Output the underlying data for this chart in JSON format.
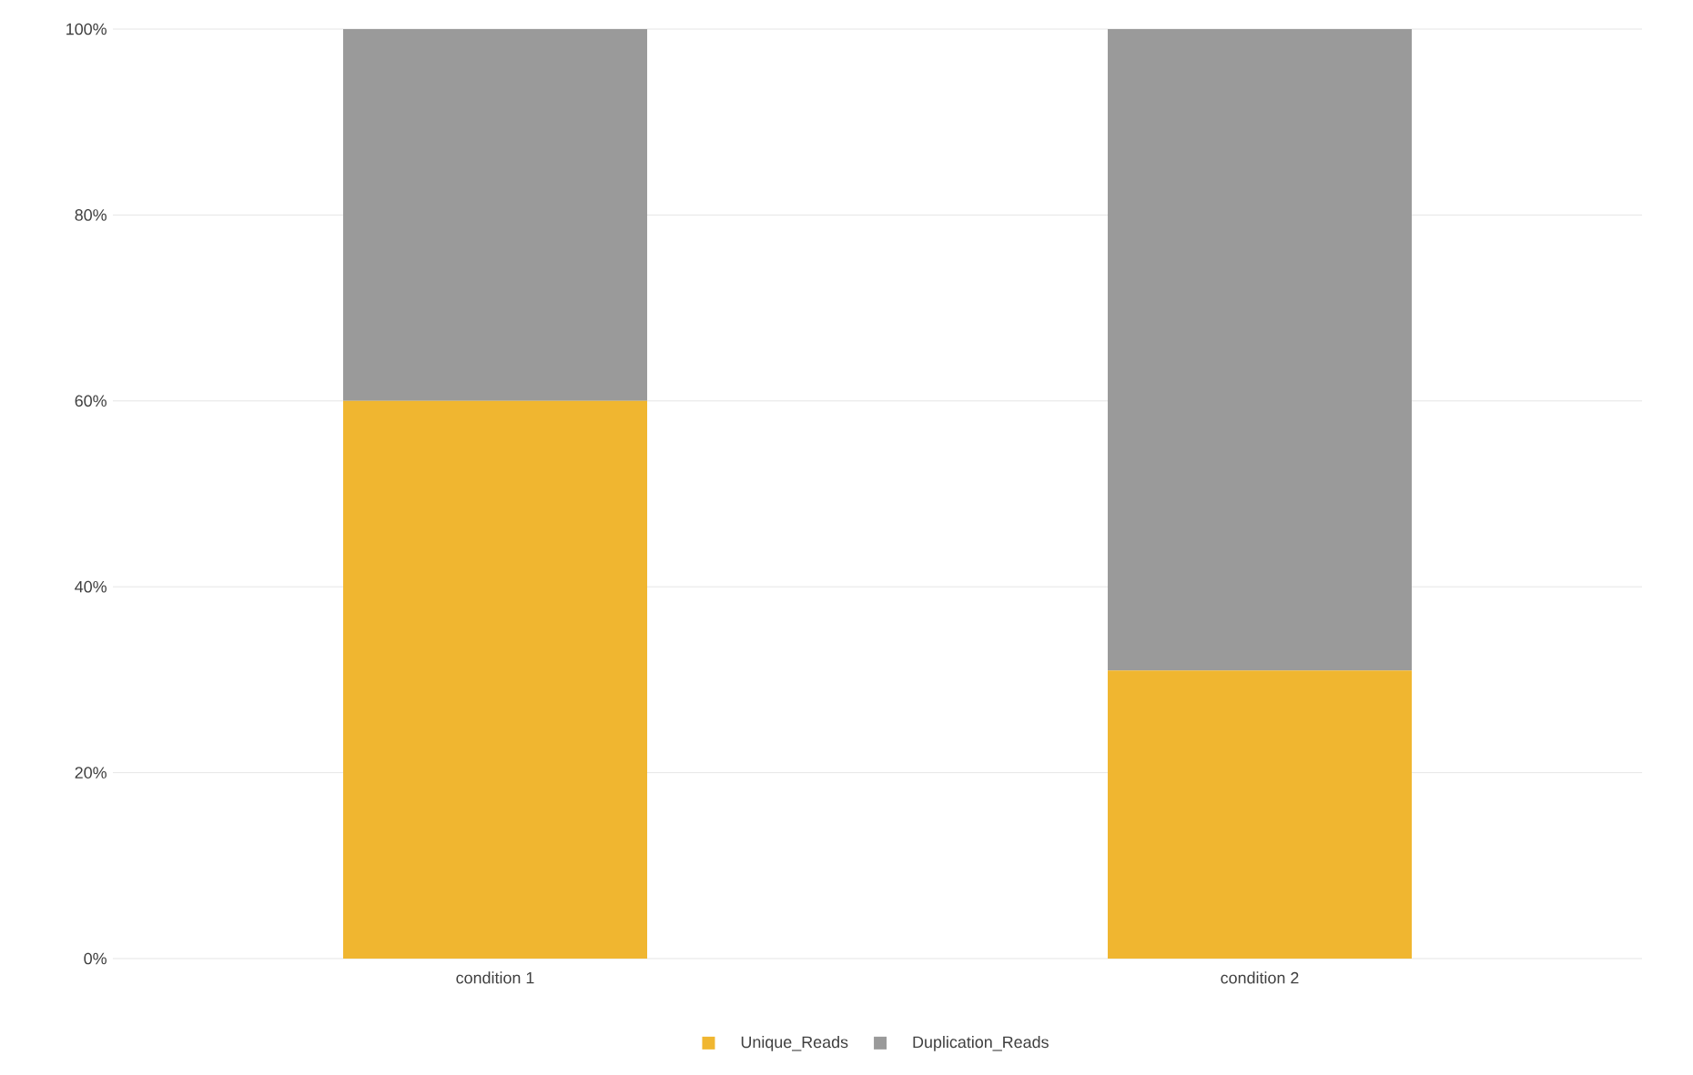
{
  "chart_data": {
    "type": "bar",
    "stacked": true,
    "categories": [
      "condition 1",
      "condition 2"
    ],
    "series": [
      {
        "name": "Unique_Reads",
        "color": "#f0b630",
        "values": [
          60,
          31
        ]
      },
      {
        "name": "Duplication_Reads",
        "color": "#9a9a9a",
        "values": [
          40,
          69
        ]
      }
    ],
    "ylim": [
      0,
      100
    ],
    "yticks": [
      {
        "value": 0,
        "label": "0%"
      },
      {
        "value": 20,
        "label": "20%"
      },
      {
        "value": 40,
        "label": "40%"
      },
      {
        "value": 60,
        "label": "60%"
      },
      {
        "value": 80,
        "label": "80%"
      },
      {
        "value": 100,
        "label": "100%"
      }
    ],
    "grid": "y",
    "legend": "bottom"
  }
}
